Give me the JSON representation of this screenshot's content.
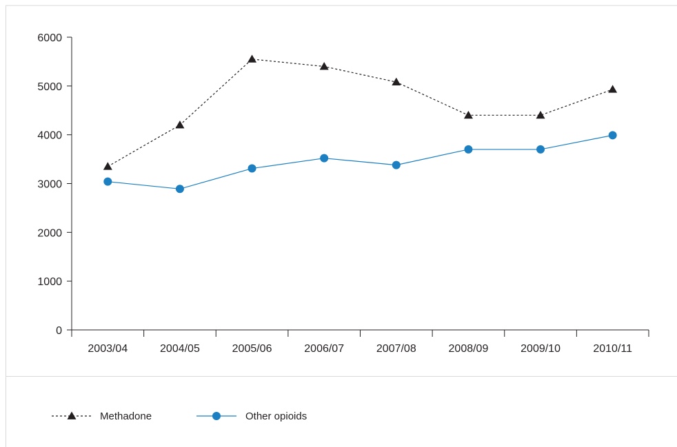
{
  "chart_data": {
    "type": "line",
    "title": "",
    "xlabel": "",
    "ylabel": "",
    "categories": [
      "2003/04",
      "2004/05",
      "2005/06",
      "2006/07",
      "2007/08",
      "2008/09",
      "2009/10",
      "2010/11"
    ],
    "yticks": [
      "0",
      "1000",
      "2000",
      "3000",
      "4000",
      "5000",
      "6000"
    ],
    "ylim": [
      0,
      6000
    ],
    "grid": false,
    "legend_position": "bottom-left",
    "series": [
      {
        "name": "Methadone",
        "values": [
          3350,
          4200,
          5550,
          5400,
          5080,
          4400,
          4400,
          4930
        ],
        "color": "#231f20",
        "line_style": "dashed",
        "marker": "triangle"
      },
      {
        "name": "Other opioids",
        "values": [
          3040,
          2890,
          3310,
          3520,
          3380,
          3700,
          3700,
          3990
        ],
        "color": "#1b7fc1",
        "line_style": "solid",
        "marker": "circle"
      }
    ]
  }
}
